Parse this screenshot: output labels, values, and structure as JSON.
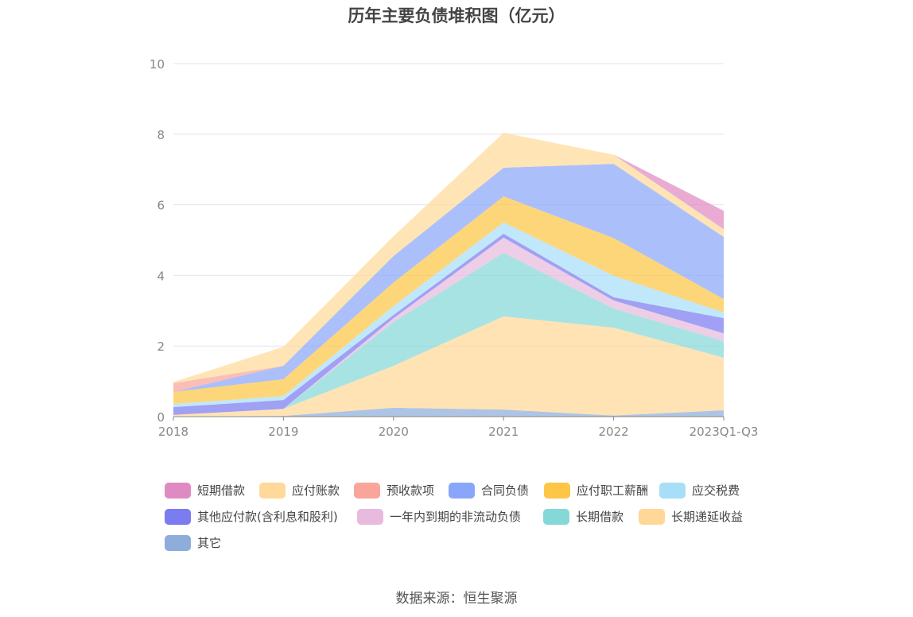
{
  "chart_data": {
    "type": "area",
    "stacked": true,
    "title": "历年主要负债堆积图（亿元）",
    "xlabel": "",
    "ylabel": "",
    "ylim": [
      0,
      10
    ],
    "yticks": [
      "0",
      "2",
      "4",
      "6",
      "8",
      "10"
    ],
    "grid": true,
    "legend_position": "bottom",
    "categories": [
      "2018",
      "2019",
      "2020",
      "2021",
      "2022",
      "2023Q1-Q3"
    ],
    "series": [
      {
        "name": "短期借款",
        "color": "#e08ac2",
        "values": [
          0,
          0,
          0,
          0,
          0,
          0.52
        ]
      },
      {
        "name": "应付账款",
        "color": "#ffd99a",
        "values": [
          0.03,
          0.54,
          0.56,
          0.99,
          0.26,
          0.22
        ]
      },
      {
        "name": "预收款项",
        "color": "#f9a59a",
        "values": [
          0.25,
          0,
          0,
          0,
          0,
          0
        ]
      },
      {
        "name": "合同负债",
        "color": "#8aa6fa",
        "values": [
          0,
          0.38,
          0.75,
          0.81,
          2.1,
          1.76
        ]
      },
      {
        "name": "应付职工薪酬",
        "color": "#fdc646",
        "values": [
          0.34,
          0.48,
          0.67,
          0.74,
          1.07,
          0.38
        ]
      },
      {
        "name": "应交税费",
        "color": "#a8dff8",
        "values": [
          0.09,
          0.11,
          0.25,
          0.32,
          0.61,
          0.16
        ]
      },
      {
        "name": "其他应付款(含利息和股利)",
        "color": "#7b7cf0",
        "values": [
          0.22,
          0.25,
          0.09,
          0.11,
          0.09,
          0.43
        ]
      },
      {
        "name": "一年内到期的非流动负债",
        "color": "#e8bade",
        "values": [
          0,
          0,
          0.11,
          0.43,
          0.23,
          0.22
        ]
      },
      {
        "name": "长期借款",
        "color": "#86d8d8",
        "values": [
          0,
          0,
          1.24,
          1.8,
          0.54,
          0.47
        ]
      },
      {
        "name": "长期递延收益",
        "color": "#ffd898",
        "values": [
          0.05,
          0.2,
          1.19,
          2.64,
          2.49,
          1.49
        ]
      },
      {
        "name": "其它",
        "color": "#8eaddb",
        "values": [
          0,
          0.02,
          0.25,
          0.2,
          0.03,
          0.18
        ]
      }
    ]
  },
  "source": "数据来源：恒生聚源"
}
